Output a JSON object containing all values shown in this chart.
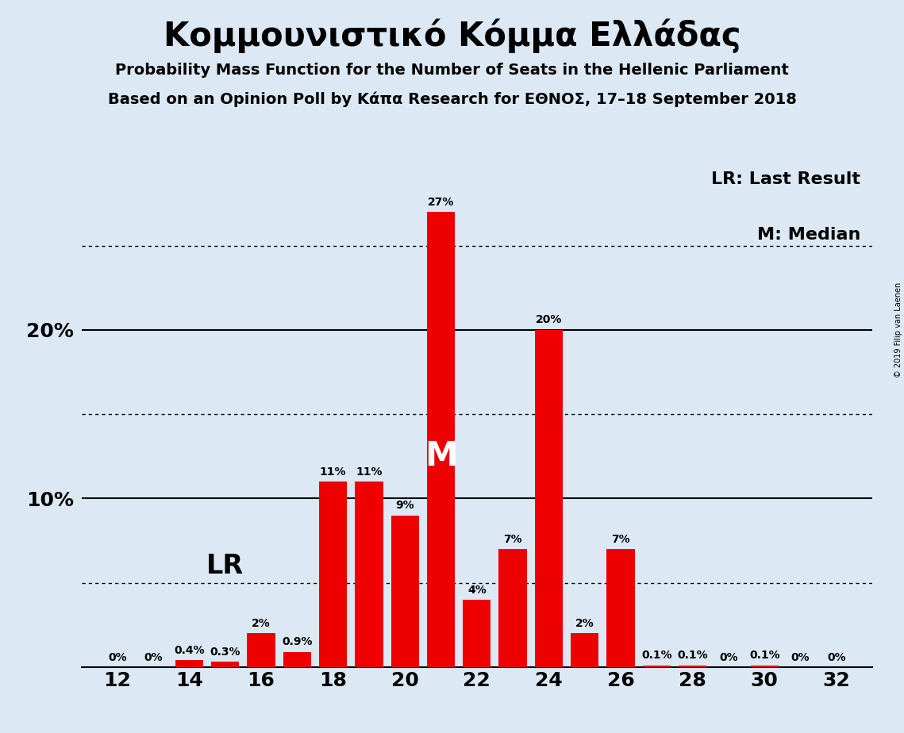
{
  "title": "Κομμουνιστικό Κόμμα Ελλάδας",
  "subtitle1": "Probability Mass Function for the Number of Seats in the Hellenic Parliament",
  "subtitle2": "Based on an Opinion Poll by Κάπα Research for ΕΘΝΟΣ, 17–18 September 2018",
  "copyright": "© 2019 Filip van Laenen",
  "background_color": "#dce9f5",
  "bar_color": "#ee0000",
  "seats": [
    12,
    13,
    14,
    15,
    16,
    17,
    18,
    19,
    20,
    21,
    22,
    23,
    24,
    25,
    26,
    27,
    28,
    29,
    30,
    31,
    32
  ],
  "probabilities": [
    0.0,
    0.0,
    0.4,
    0.3,
    2.0,
    0.9,
    11.0,
    11.0,
    9.0,
    27.0,
    4.0,
    7.0,
    20.0,
    2.0,
    7.0,
    0.1,
    0.1,
    0.0,
    0.1,
    0.0,
    0.0
  ],
  "labels": [
    "0%",
    "0%",
    "0.4%",
    "0.3%",
    "2%",
    "0.9%",
    "11%",
    "11%",
    "9%",
    "27%",
    "4%",
    "7%",
    "20%",
    "2%",
    "7%",
    "0.1%",
    "0.1%",
    "0%",
    "0.1%",
    "0%",
    "0%"
  ],
  "last_result_seat": 14,
  "median_seat": 21,
  "dotted_yticks": [
    5,
    15,
    25
  ],
  "solid_yticks": [
    10,
    20
  ],
  "ylim": [
    0,
    30
  ],
  "xmin": 11,
  "xmax": 33,
  "legend_lr": "LR: Last Result",
  "legend_m": "M: Median",
  "label_fontsize": 10,
  "tick_fontsize": 18,
  "title_fontsize": 30,
  "subtitle_fontsize": 14,
  "legend_fontsize": 16
}
